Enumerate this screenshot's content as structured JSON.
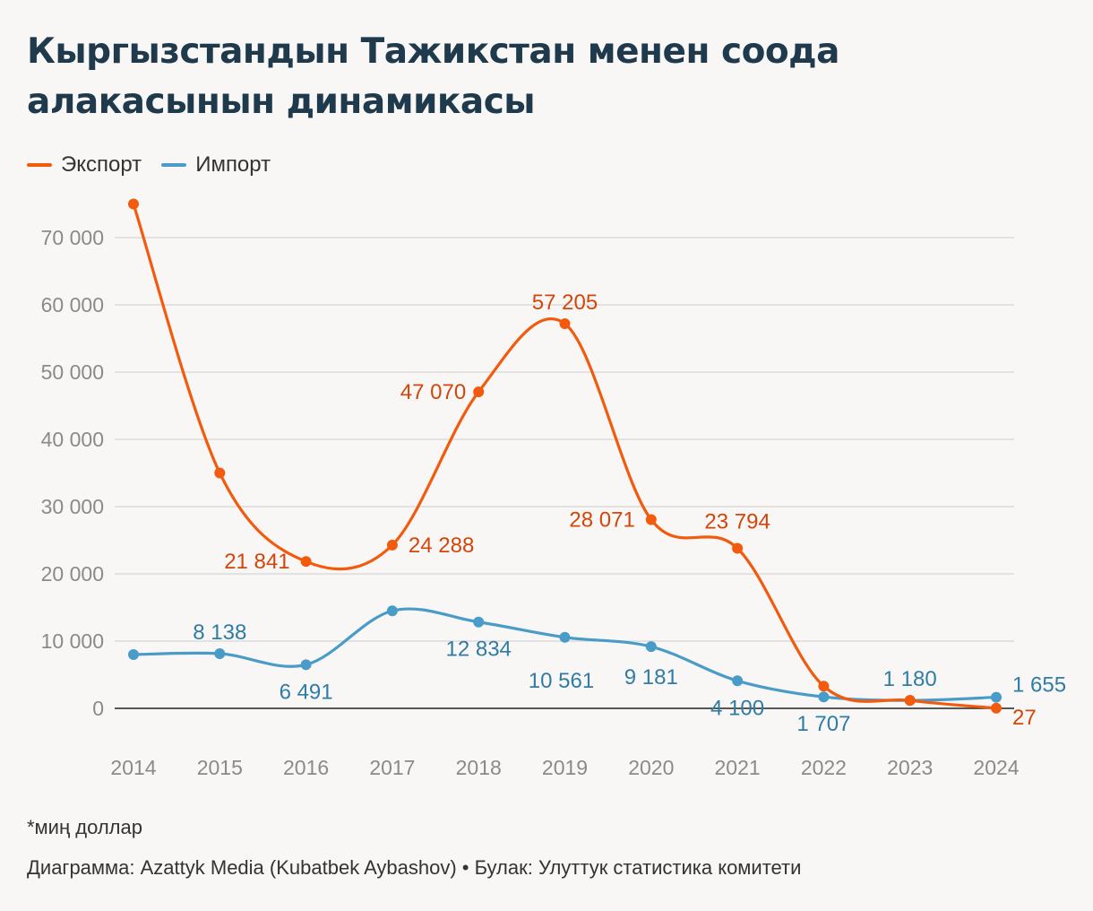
{
  "title": "Кыргызстандын Тажикстан менен соода алакасынын динамикасы",
  "footnote": "*миң доллар",
  "credit": "Диаграмма: Azattyk Media (Kubatbek Aybashov) • Булак: Улуттук статистика комитети",
  "colors": {
    "export": "#f25a0d",
    "import": "#4a9cc8",
    "export_label": "#d4450a",
    "import_label": "#2f7ca6"
  },
  "chart_data": {
    "type": "line",
    "title": "Кыргызстандын Тажикстан менен соода алакасынын динамикасы",
    "xlabel": "",
    "ylabel": "",
    "x": [
      "2014",
      "2015",
      "2016",
      "2017",
      "2018",
      "2019",
      "2020",
      "2021",
      "2022",
      "2023",
      "2024"
    ],
    "ylim": [
      0,
      70000
    ],
    "yticks": [
      0,
      10000,
      20000,
      30000,
      40000,
      50000,
      60000,
      70000
    ],
    "ytick_labels": [
      "0",
      "10 000",
      "20 000",
      "30 000",
      "40 000",
      "50 000",
      "60 000",
      "70 000"
    ],
    "grid": true,
    "legend": "top-left",
    "series": [
      {
        "name": "Экспорт",
        "key": "export",
        "values": [
          75000,
          35000,
          21841,
          24288,
          47070,
          57205,
          28071,
          23794,
          3300,
          1180,
          27
        ],
        "labels": [
          null,
          null,
          "21 841",
          "24 288",
          "47 070",
          "57 205",
          "28 071",
          "23 794",
          null,
          null,
          "27"
        ]
      },
      {
        "name": "Импорт",
        "key": "import",
        "values": [
          8000,
          8138,
          6491,
          14500,
          12834,
          10561,
          9181,
          4100,
          1707,
          1180,
          1655
        ],
        "labels": [
          null,
          "8 138",
          "6 491",
          null,
          "12 834",
          "10 561",
          "9 181",
          "4 100",
          "1 707",
          "1 180",
          "1 655"
        ]
      }
    ]
  }
}
